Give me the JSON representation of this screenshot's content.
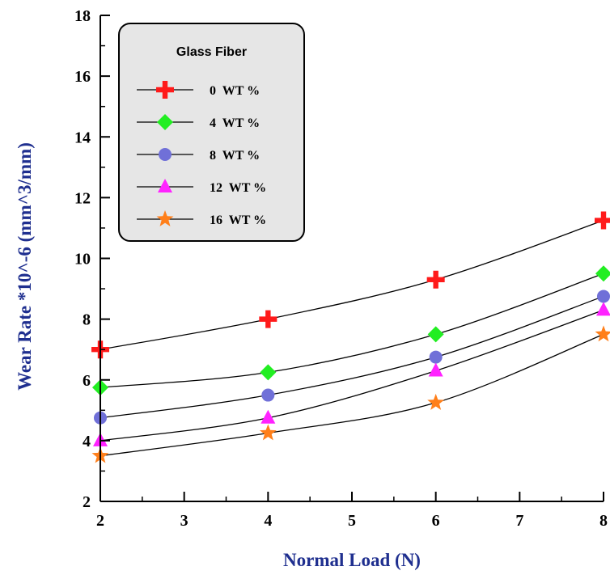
{
  "chart_data": {
    "type": "line",
    "title": "",
    "xlabel": "Normal Load (N)",
    "ylabel": "Wear Rate *10^-6 (mm^3/mm)",
    "xlim": [
      2,
      8
    ],
    "ylim": [
      2,
      18
    ],
    "x_ticks": [
      2,
      3,
      4,
      5,
      6,
      7,
      8
    ],
    "y_ticks": [
      2,
      4,
      6,
      8,
      10,
      12,
      14,
      16,
      18
    ],
    "legend": {
      "title": "Glass Fiber",
      "position": "top-left"
    },
    "grid": false,
    "x": [
      2,
      4,
      6,
      8
    ],
    "series": [
      {
        "name": "0  WT %",
        "values": [
          7.0,
          8.0,
          9.3,
          11.25
        ],
        "marker": "plus",
        "color": "#ff1a1a"
      },
      {
        "name": "4  WT %",
        "values": [
          5.75,
          6.25,
          7.5,
          9.5
        ],
        "marker": "diamond",
        "color": "#22ee22"
      },
      {
        "name": "8  WT %",
        "values": [
          4.75,
          5.5,
          6.75,
          8.75
        ],
        "marker": "circle",
        "color": "#7070d8"
      },
      {
        "name": "12  WT %",
        "values": [
          4.0,
          4.75,
          6.3,
          8.3
        ],
        "marker": "triangle",
        "color": "#ff22ff"
      },
      {
        "name": "16  WT %",
        "values": [
          3.5,
          4.25,
          5.25,
          7.5
        ],
        "marker": "star",
        "color": "#ff7f1a"
      }
    ]
  }
}
